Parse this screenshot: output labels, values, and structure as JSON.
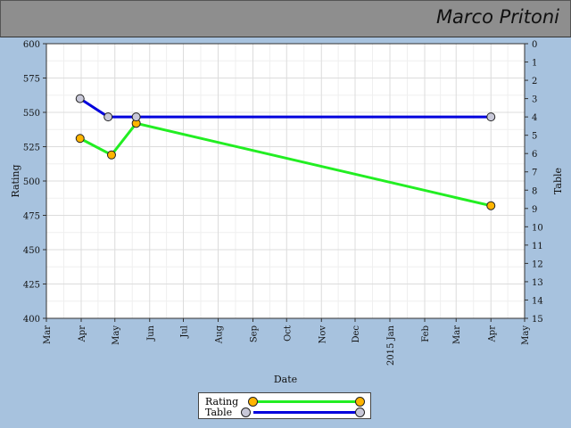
{
  "header": {
    "player_name": "Marco Pritoni"
  },
  "colors": {
    "background": "#a7c2de",
    "rating_line": "#22ee22",
    "rating_marker": "#ffb400",
    "table_line": "#0000dd",
    "table_marker": "#c8c8d8"
  },
  "chart_data": {
    "type": "line",
    "xlabel": "Date",
    "ylabel": "Rating",
    "y2label": "Table",
    "ylim": [
      400,
      600
    ],
    "y2lim": [
      0,
      15
    ],
    "y2_inverted": true,
    "xlim": [
      "2014-03-01",
      "2015-05-01"
    ],
    "yticks": [
      400,
      425,
      450,
      475,
      500,
      525,
      550,
      575,
      600
    ],
    "y2ticks": [
      0,
      1,
      2,
      3,
      4,
      5,
      6,
      7,
      8,
      9,
      10,
      11,
      12,
      13,
      14,
      15
    ],
    "xticks": [
      {
        "date": "2014-03-01",
        "label": "Mar"
      },
      {
        "date": "2014-04-01",
        "label": "Apr"
      },
      {
        "date": "2014-05-01",
        "label": "May"
      },
      {
        "date": "2014-06-01",
        "label": "Jun"
      },
      {
        "date": "2014-07-01",
        "label": "Jul"
      },
      {
        "date": "2014-08-01",
        "label": "Aug"
      },
      {
        "date": "2014-09-01",
        "label": "Sep"
      },
      {
        "date": "2014-10-01",
        "label": "Oct"
      },
      {
        "date": "2014-11-01",
        "label": "Nov"
      },
      {
        "date": "2014-12-01",
        "label": "Dec"
      },
      {
        "date": "2015-01-01",
        "label": "2015 Jan"
      },
      {
        "date": "2015-02-01",
        "label": "Feb"
      },
      {
        "date": "2015-03-01",
        "label": "Mar"
      },
      {
        "date": "2015-04-01",
        "label": "Apr"
      },
      {
        "date": "2015-05-01",
        "label": "May"
      }
    ],
    "grid": true,
    "legend": "bottom-center",
    "series": [
      {
        "name": "Rating",
        "axis": "left",
        "points": [
          {
            "x": "2014-03-31",
            "y": 531
          },
          {
            "x": "2014-04-28",
            "y": 519
          },
          {
            "x": "2014-05-20",
            "y": 542
          },
          {
            "x": "2015-04-01",
            "y": 482
          }
        ]
      },
      {
        "name": "Table",
        "axis": "right",
        "points": [
          {
            "x": "2014-03-31",
            "y": 3
          },
          {
            "x": "2014-04-25",
            "y": 4
          },
          {
            "x": "2014-05-20",
            "y": 4
          },
          {
            "x": "2015-04-01",
            "y": 4
          }
        ]
      }
    ]
  }
}
